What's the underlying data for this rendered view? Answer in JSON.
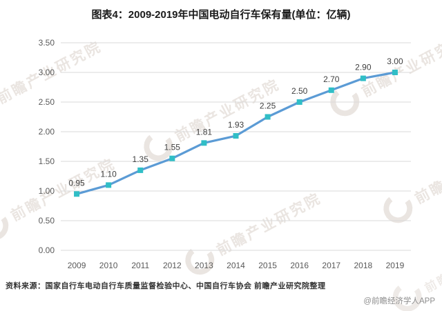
{
  "chart_data": {
    "type": "line",
    "title": "图表4：2009-2019年中国电动自行车保有量(单位：亿辆)",
    "unit_label": "亿辆",
    "categories": [
      "2009",
      "2010",
      "2011",
      "2012",
      "2013",
      "2014",
      "2015",
      "2016",
      "2017",
      "2018",
      "2019"
    ],
    "values": [
      0.95,
      1.1,
      1.35,
      1.55,
      1.81,
      1.93,
      2.25,
      2.5,
      2.7,
      2.9,
      3.0
    ],
    "data_labels": [
      "0.95",
      "1.10",
      "1.35",
      "1.55",
      "1.81",
      "1.93",
      "2.25",
      "2.50",
      "2.70",
      "2.90",
      "3.00"
    ],
    "y_ticks": [
      "0.00",
      "0.50",
      "1.00",
      "1.50",
      "2.00",
      "2.50",
      "3.00",
      "3.50"
    ],
    "ylim": [
      0,
      3.5
    ],
    "y_step": 0.5,
    "grid": "horizontal",
    "legend_position": "none",
    "line_color": "#5B9BD5",
    "marker_color": "#30BEC6",
    "grid_color": "#D9D9D9",
    "tick_color": "#595959",
    "label_color": "#404040"
  },
  "footer": {
    "source": "资料来源：国家自行车电动自行车质量监督检验中心、中国自行车协会 前瞻产业研究院整理",
    "credit": "@前瞻经济学人APP"
  },
  "watermark": {
    "text": "前瞻产业研究院"
  }
}
